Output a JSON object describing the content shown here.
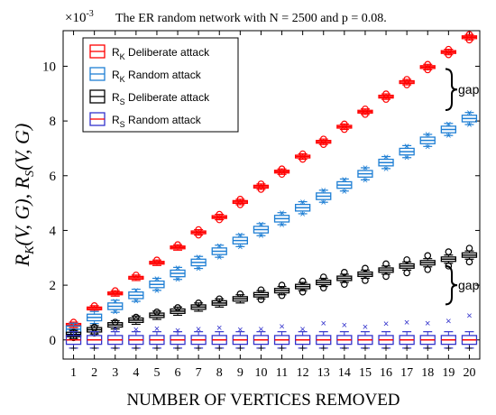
{
  "chart_data": {
    "type": "box",
    "title": "The ER random network with N = 2500 and p = 0.08.",
    "exponent_label": "×10",
    "exponent_power": "-3",
    "xlabel": "NUMBER OF VERTICES REMOVED",
    "ylabel": "R_K(V,G), R_S(V,G)",
    "x": [
      1,
      2,
      3,
      4,
      5,
      6,
      7,
      8,
      9,
      10,
      11,
      12,
      13,
      14,
      15,
      16,
      17,
      18,
      19,
      20
    ],
    "x_ticks": [
      "1",
      "2",
      "3",
      "4",
      "5",
      "6",
      "7",
      "8",
      "9",
      "10",
      "11",
      "12",
      "13",
      "14",
      "15",
      "16",
      "17",
      "18",
      "19",
      "20"
    ],
    "y_ticks": [
      "0",
      "2",
      "4",
      "6",
      "8",
      "10"
    ],
    "y_tick_values": [
      0,
      2,
      4,
      6,
      8,
      10
    ],
    "ylim": [
      -0.7,
      11.3
    ],
    "xlim": [
      0.5,
      20.5
    ],
    "grid": false,
    "legend_position": "top-left",
    "series": [
      {
        "key": "rk_deliberate",
        "legend_main": "R",
        "legend_sub": "K",
        "legend_text": " Deliberate attack",
        "color": "#ff0000",
        "medians": [
          0.55,
          1.15,
          1.7,
          2.27,
          2.82,
          3.38,
          3.93,
          4.49,
          5.04,
          5.6,
          6.15,
          6.7,
          7.24,
          7.79,
          8.34,
          8.89,
          9.42,
          9.97,
          10.52,
          11.06
        ],
        "half_box": 0.05,
        "whisker": 0.1,
        "outliers_above": [
          0.65,
          1.25,
          1.8,
          2.37,
          2.92,
          3.48,
          4.03,
          4.59,
          5.14,
          5.7,
          6.25,
          6.8,
          7.34,
          7.89,
          8.44,
          8.99,
          9.52,
          10.07,
          10.62,
          11.16
        ],
        "outliers_below": [
          null,
          null,
          null,
          null,
          null,
          null,
          3.83,
          4.39,
          4.94,
          5.5,
          6.05,
          6.6,
          7.14,
          7.69,
          8.24,
          8.79,
          9.32,
          9.87,
          10.42,
          10.96
        ]
      },
      {
        "key": "rk_random",
        "legend_main": "R",
        "legend_sub": "K",
        "legend_text": " Random attack",
        "color": "#1f7fd4",
        "medians": [
          0.39,
          0.82,
          1.23,
          1.63,
          2.03,
          2.43,
          2.83,
          3.24,
          3.63,
          4.03,
          4.43,
          4.83,
          5.25,
          5.66,
          6.07,
          6.48,
          6.88,
          7.29,
          7.69,
          8.09
        ],
        "half_box": 0.12,
        "whisker": 0.22,
        "outliers_above": [
          null,
          null,
          1.43,
          1.83,
          2.25,
          2.65,
          3.05,
          3.46,
          3.85,
          4.25,
          4.66,
          5.05,
          5.48,
          5.88,
          6.3,
          6.7,
          7.1,
          7.52,
          7.91,
          8.32
        ],
        "outliers_below": [
          null,
          null,
          1.03,
          1.43,
          1.81,
          2.21,
          2.61,
          3.02,
          3.41,
          3.81,
          4.21,
          4.61,
          5.03,
          5.44,
          5.85,
          6.26,
          6.66,
          7.07,
          7.47,
          7.87
        ]
      },
      {
        "key": "rs_deliberate",
        "legend_main": "R",
        "legend_sub": "S",
        "legend_text": " Deliberate attack",
        "color": "#000000",
        "medians": [
          0.2,
          0.37,
          0.55,
          0.72,
          0.9,
          1.05,
          1.2,
          1.35,
          1.5,
          1.65,
          1.8,
          1.95,
          2.1,
          2.25,
          2.4,
          2.55,
          2.7,
          2.82,
          2.95,
          3.1
        ],
        "half_box": 0.08,
        "whisker": 0.15,
        "outliers_above": [
          0.28,
          0.47,
          0.65,
          0.83,
          1.02,
          1.18,
          1.35,
          1.5,
          1.68,
          1.83,
          2.0,
          2.15,
          2.3,
          2.47,
          2.62,
          2.78,
          2.93,
          3.08,
          3.22,
          3.35
        ],
        "outliers_below": [
          0.08,
          0.25,
          null,
          null,
          null,
          null,
          null,
          null,
          null,
          1.47,
          1.62,
          1.75,
          1.9,
          2.03,
          2.17,
          2.32,
          2.45,
          2.57,
          2.7,
          2.85
        ]
      },
      {
        "key": "rs_random",
        "legend_main": "R",
        "legend_sub": "S",
        "legend_text": " Random attack",
        "color": "#3333cc",
        "median_color": "#ff0000",
        "medians": [
          0,
          0,
          0,
          0,
          0,
          0,
          0,
          0,
          0,
          0,
          0,
          0,
          0,
          0,
          0,
          0,
          0,
          0,
          0,
          0
        ],
        "half_box": 0.16,
        "whisker": 0.3,
        "outliers_above": [
          null,
          null,
          0.4,
          0.38,
          0.42,
          0.35,
          0.4,
          0.45,
          0.38,
          0.4,
          0.5,
          0.4,
          0.62,
          0.55,
          0.48,
          0.6,
          0.65,
          0.62,
          0.7,
          0.9
        ],
        "outliers_below": [
          -0.3,
          -0.3,
          -0.3,
          -0.3,
          -0.3,
          -0.3,
          -0.3,
          -0.3,
          -0.3,
          -0.3,
          -0.3,
          -0.3,
          -0.3,
          -0.3,
          -0.3,
          -0.3,
          -0.3,
          -0.3,
          -0.3,
          -0.3
        ]
      }
    ],
    "annotations": [
      {
        "key": "gap_top",
        "text": "gap",
        "y_from": 8.4,
        "y_to": 9.9
      },
      {
        "key": "gap_bottom",
        "text": "gap",
        "y_from": 1.3,
        "y_to": 2.7
      }
    ]
  }
}
